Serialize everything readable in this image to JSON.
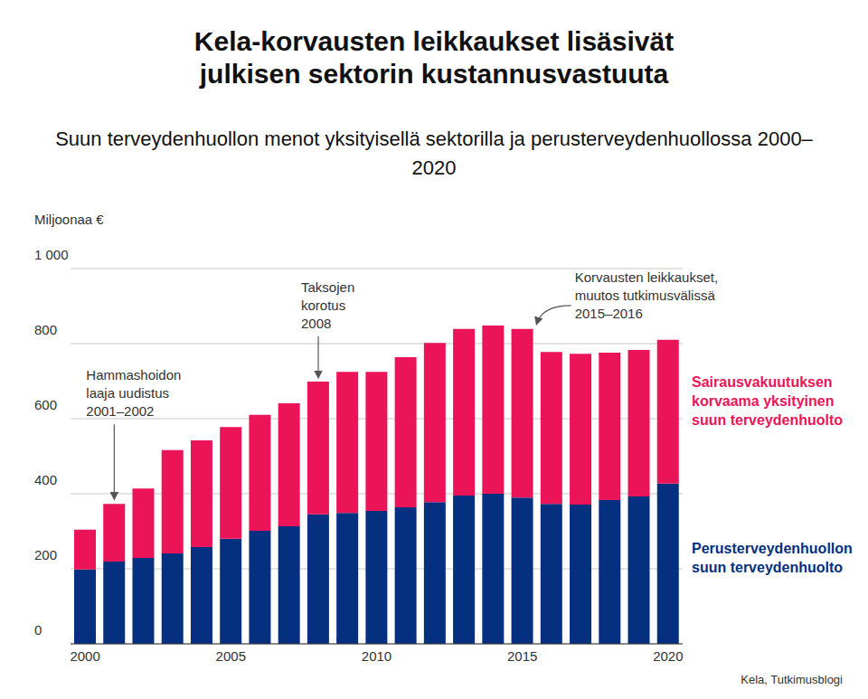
{
  "chart_data": {
    "type": "bar",
    "title": "Kela-korvausten leikkaukset lisäsivät julkisen sektorin kustannusvastuuta",
    "subtitle": "Suun terveydenhuollon menot yksityisellä sektorilla ja perusterveydenhuollossa 2000–2020",
    "y_label": "Miljoonaa €",
    "source": "Kela, Tutkimusblogi",
    "stacked": true,
    "grid": true,
    "legend": "right",
    "x": [
      2000,
      2001,
      2002,
      2003,
      2004,
      2005,
      2006,
      2007,
      2008,
      2009,
      2010,
      2011,
      2012,
      2013,
      2014,
      2015,
      2016,
      2017,
      2018,
      2019,
      2020
    ],
    "xlim": [
      1999.5,
      2020.5
    ],
    "xticks": [
      2000,
      2005,
      2010,
      2015,
      2020
    ],
    "ylim": [
      0,
      1000
    ],
    "yticks": [
      0,
      200,
      400,
      600,
      800,
      {
        "value": 1000,
        "label": "1 000"
      }
    ],
    "series": [
      {
        "name": "Perusterveydenhuollon suun terveydenhuolto",
        "color": "#05307f",
        "values": [
          198,
          219,
          229,
          241,
          258,
          280,
          301,
          313,
          345,
          349,
          354,
          364,
          378,
          395,
          400,
          390,
          373,
          371,
          383,
          393,
          427
        ]
      },
      {
        "name": "Sairausvakuutuksen korvaama yksityinen suun terveydenhuolto",
        "color": "#ec1459",
        "values": [
          106,
          154,
          185,
          275,
          284,
          298,
          309,
          328,
          354,
          376,
          371,
          400,
          424,
          444,
          448,
          449,
          405,
          402,
          393,
          390,
          383
        ]
      }
    ],
    "annotations": [
      {
        "text": [
          "Hammashoidon",
          "laaja uudistus",
          "2001–2002"
        ],
        "x": 2001
      },
      {
        "text": [
          "Taksojen",
          "korotus",
          "2008"
        ],
        "x": 2008
      },
      {
        "text": [
          "Korvausten leikkaukset,",
          "muutos tutkimusvälissä",
          "2015–2016"
        ],
        "x": 2015
      }
    ]
  }
}
